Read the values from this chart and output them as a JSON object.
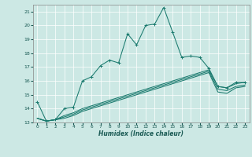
{
  "xlabel": "Humidex (Indice chaleur)",
  "xlim": [
    -0.5,
    23.5
  ],
  "ylim": [
    13,
    21.5
  ],
  "yticks": [
    13,
    14,
    15,
    16,
    17,
    18,
    19,
    20,
    21
  ],
  "xticks": [
    0,
    1,
    2,
    3,
    4,
    5,
    6,
    7,
    8,
    9,
    10,
    11,
    12,
    13,
    14,
    15,
    16,
    17,
    18,
    19,
    20,
    21,
    22,
    23
  ],
  "bg_color": "#cce8e4",
  "grid_color": "#ffffff",
  "line_color": "#1a7a6e",
  "line1_x": [
    0,
    1,
    2,
    3,
    4,
    5,
    6,
    7,
    8,
    9,
    10,
    11,
    12,
    13,
    14,
    15,
    16,
    17,
    18,
    19,
    20,
    21,
    22,
    23
  ],
  "line1_y": [
    14.5,
    13.1,
    13.2,
    14.0,
    14.1,
    16.0,
    16.3,
    17.1,
    17.5,
    17.3,
    19.4,
    18.6,
    20.0,
    20.1,
    21.3,
    19.5,
    17.7,
    17.8,
    17.7,
    16.9,
    15.6,
    15.5,
    15.9,
    15.9
  ],
  "line2_x": [
    0,
    1,
    2,
    3,
    4,
    5,
    6,
    7,
    8,
    9,
    10,
    11,
    12,
    13,
    14,
    15,
    16,
    17,
    18,
    19,
    20,
    21,
    22,
    23
  ],
  "line2_y": [
    13.3,
    13.1,
    13.2,
    13.5,
    13.7,
    14.0,
    14.2,
    14.4,
    14.6,
    14.8,
    15.0,
    15.2,
    15.4,
    15.6,
    15.8,
    16.0,
    16.2,
    16.4,
    16.6,
    16.8,
    15.6,
    15.5,
    15.8,
    15.9
  ],
  "line3_x": [
    0,
    1,
    2,
    3,
    4,
    5,
    6,
    7,
    8,
    9,
    10,
    11,
    12,
    13,
    14,
    15,
    16,
    17,
    18,
    19,
    20,
    21,
    22,
    23
  ],
  "line3_y": [
    13.3,
    13.1,
    13.2,
    13.4,
    13.6,
    13.9,
    14.1,
    14.3,
    14.5,
    14.7,
    14.9,
    15.1,
    15.3,
    15.5,
    15.7,
    15.9,
    16.1,
    16.3,
    16.5,
    16.7,
    15.4,
    15.3,
    15.6,
    15.7
  ],
  "line4_x": [
    0,
    1,
    2,
    3,
    4,
    5,
    6,
    7,
    8,
    9,
    10,
    11,
    12,
    13,
    14,
    15,
    16,
    17,
    18,
    19,
    20,
    21,
    22,
    23
  ],
  "line4_y": [
    13.3,
    13.1,
    13.2,
    13.3,
    13.5,
    13.8,
    14.0,
    14.2,
    14.4,
    14.6,
    14.8,
    15.0,
    15.2,
    15.4,
    15.6,
    15.8,
    16.0,
    16.2,
    16.4,
    16.6,
    15.2,
    15.1,
    15.5,
    15.6
  ]
}
